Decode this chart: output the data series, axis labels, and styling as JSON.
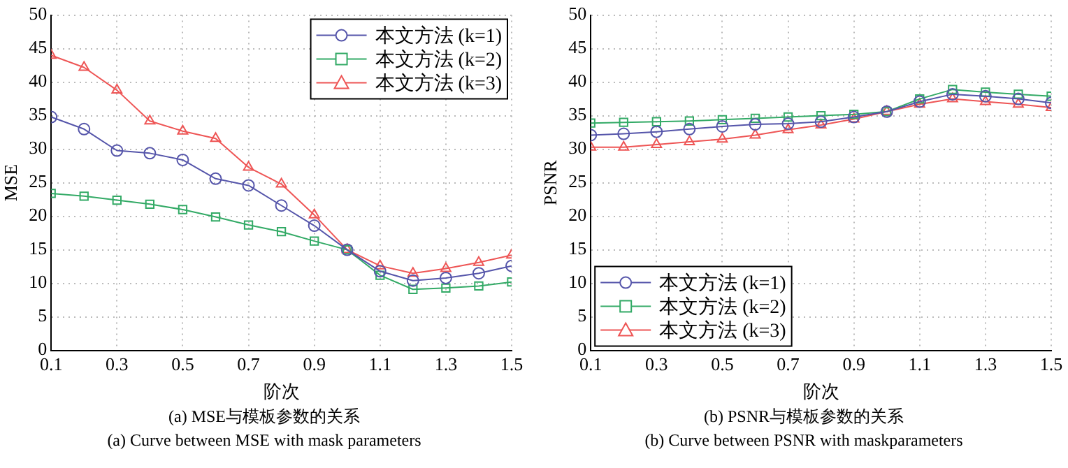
{
  "chart_data": [
    {
      "type": "line",
      "xlabel": "阶次",
      "ylabel": "MSE",
      "x": [
        0.1,
        0.2,
        0.3,
        0.4,
        0.5,
        0.6,
        0.7,
        0.8,
        0.9,
        1.0,
        1.1,
        1.2,
        1.3,
        1.4,
        1.5
      ],
      "xlim": [
        0.1,
        1.5
      ],
      "xticks": [
        0.1,
        0.3,
        0.5,
        0.7,
        0.9,
        1.1,
        1.3,
        1.5
      ],
      "ylim": [
        0,
        50
      ],
      "yticks": [
        0,
        5,
        10,
        15,
        20,
        25,
        30,
        35,
        40,
        45,
        50
      ],
      "grid": true,
      "legend": "top right",
      "line_style": "solid",
      "series": [
        {
          "name": "本文方法 (k=1)",
          "color": "#5555aa",
          "marker": "circle",
          "values": [
            34.8,
            33,
            29.8,
            29.4,
            28.4,
            25.6,
            24.6,
            21.6,
            18.6,
            15,
            11.8,
            10.4,
            10.8,
            11.5,
            12.6
          ]
        },
        {
          "name": "本文方法 (k=2)",
          "color": "#33aa66",
          "marker": "square",
          "values": [
            23.4,
            23,
            22.4,
            21.8,
            21,
            19.9,
            18.7,
            17.7,
            16.3,
            15,
            11.2,
            9.1,
            9.3,
            9.6,
            10.2
          ]
        },
        {
          "name": "本文方法 (k=3)",
          "color": "#ee5555",
          "marker": "triangle",
          "values": [
            44,
            42.2,
            38.8,
            34.2,
            32.7,
            31.6,
            27.3,
            24.8,
            20.2,
            15,
            12.6,
            11.5,
            12.2,
            13.1,
            14.2
          ]
        }
      ],
      "annotations": [
        "(a) MSE与模板参数的关系",
        "(a) Curve between MSE with mask parameters"
      ]
    },
    {
      "type": "line",
      "xlabel": "阶次",
      "ylabel": "PSNR",
      "x": [
        0.1,
        0.2,
        0.3,
        0.4,
        0.5,
        0.6,
        0.7,
        0.8,
        0.9,
        1.0,
        1.1,
        1.2,
        1.3,
        1.4,
        1.5
      ],
      "xlim": [
        0.1,
        1.5
      ],
      "xticks": [
        0.1,
        0.3,
        0.5,
        0.7,
        0.9,
        1.1,
        1.3,
        1.5
      ],
      "ylim": [
        0,
        50
      ],
      "yticks": [
        0,
        5,
        10,
        15,
        20,
        25,
        30,
        35,
        40,
        45,
        50
      ],
      "grid": true,
      "legend": "bottom left",
      "line_style": "solid",
      "series": [
        {
          "name": "本文方法 (k=1)",
          "color": "#5555aa",
          "marker": "circle",
          "values": [
            32.1,
            32.3,
            32.6,
            33,
            33.4,
            33.7,
            33.8,
            34.1,
            34.8,
            35.6,
            37.1,
            38.2,
            37.9,
            37.5,
            36.9
          ]
        },
        {
          "name": "本文方法 (k=2)",
          "color": "#33aa66",
          "marker": "square",
          "values": [
            33.9,
            34,
            34.1,
            34.2,
            34.4,
            34.6,
            34.8,
            35,
            35.2,
            35.6,
            37.5,
            38.9,
            38.5,
            38.2,
            37.9
          ]
        },
        {
          "name": "本文方法 (k=3)",
          "color": "#ee5555",
          "marker": "triangle",
          "values": [
            30.3,
            30.3,
            30.7,
            31.1,
            31.5,
            32.1,
            32.9,
            33.6,
            34.5,
            35.6,
            36.7,
            37.5,
            37.1,
            36.7,
            36.2
          ]
        }
      ],
      "annotations": [
        "(b) PSNR与模板参数的关系",
        "(b) Curve between PSNR with maskparameters"
      ]
    }
  ]
}
